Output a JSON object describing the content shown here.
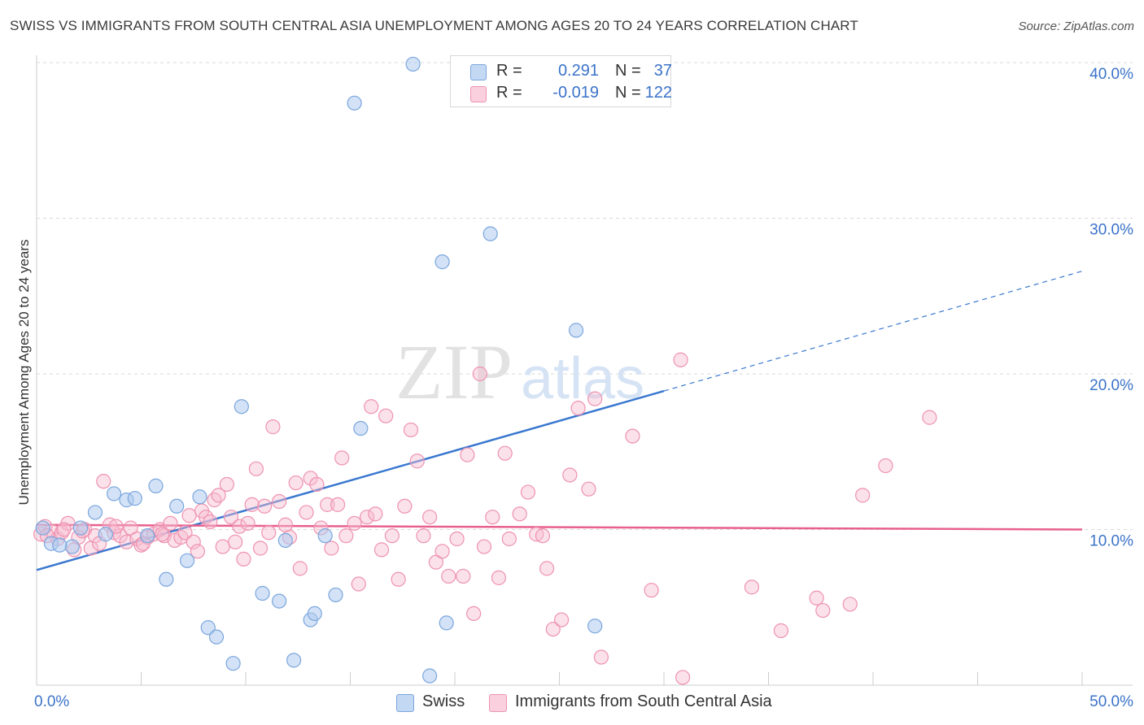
{
  "title": "SWISS VS IMMIGRANTS FROM SOUTH CENTRAL ASIA UNEMPLOYMENT AMONG AGES 20 TO 24 YEARS CORRELATION CHART",
  "source": "Source: ZipAtlas.com",
  "watermark": {
    "zip": "ZIP",
    "atlas": "atlas"
  },
  "legend": {
    "swiss": {
      "r_label": "R =",
      "r_value": "0.291",
      "n_label": "N =",
      "n_value": "37"
    },
    "immigrants": {
      "r_label": "R =",
      "r_value": "-0.019",
      "n_label": "N =",
      "n_value": "122"
    }
  },
  "bottom_legend": {
    "swiss": "Swiss",
    "immigrants": "Immigrants from South Central Asia"
  },
  "colors": {
    "swiss_fill": "#aecbef",
    "swiss_stroke": "#7aa6dd",
    "swiss_line": "#3a78d0",
    "imm_fill": "#f7bdd0",
    "imm_stroke": "#ee92b0",
    "imm_line": "#e8608c",
    "tick_label": "#3b73c9",
    "grid": "#d9d9d9"
  },
  "chart_data": {
    "type": "scatter",
    "title": "SWISS VS IMMIGRANTS FROM SOUTH CENTRAL ASIA UNEMPLOYMENT AMONG AGES 20 TO 24 YEARS CORRELATION CHART",
    "xlabel": "",
    "ylabel": "Unemployment Among Ages 20 to 24 years",
    "xlim": [
      0,
      50
    ],
    "ylim": [
      0,
      40
    ],
    "x_tick_labels": [
      "0.0%",
      "50.0%"
    ],
    "y_ticks": [
      10,
      20,
      30,
      40
    ],
    "y_tick_labels": [
      "10.0%",
      "20.0%",
      "30.0%",
      "40.0%"
    ],
    "grid": true,
    "legend_position": "top-center",
    "series": [
      {
        "name": "Swiss",
        "r": 0.291,
        "n": 37,
        "trend": {
          "x0": 0,
          "y0": 7.4,
          "x1": 30,
          "y1": 18.9,
          "dashed_to_x": 50,
          "dashed_to_y": 26.6
        },
        "points": [
          [
            0.3,
            10.1
          ],
          [
            0.7,
            9.1
          ],
          [
            1.7,
            8.9
          ],
          [
            2.8,
            11.1
          ],
          [
            3.7,
            12.3
          ],
          [
            4.3,
            11.9
          ],
          [
            4.7,
            12.0
          ],
          [
            5.3,
            9.6
          ],
          [
            5.7,
            12.8
          ],
          [
            6.2,
            6.8
          ],
          [
            6.7,
            11.5
          ],
          [
            7.2,
            8.0
          ],
          [
            7.8,
            12.1
          ],
          [
            8.2,
            3.7
          ],
          [
            8.6,
            3.1
          ],
          [
            9.4,
            1.4
          ],
          [
            9.8,
            17.9
          ],
          [
            10.8,
            5.9
          ],
          [
            11.6,
            5.4
          ],
          [
            11.9,
            9.3
          ],
          [
            12.3,
            1.6
          ],
          [
            13.1,
            4.2
          ],
          [
            13.3,
            4.6
          ],
          [
            13.8,
            9.6
          ],
          [
            14.3,
            5.8
          ],
          [
            15.2,
            37.4
          ],
          [
            15.5,
            16.5
          ],
          [
            18.0,
            39.9
          ],
          [
            18.8,
            0.6
          ],
          [
            19.4,
            27.2
          ],
          [
            19.6,
            4.0
          ],
          [
            21.7,
            29.0
          ],
          [
            25.8,
            22.8
          ],
          [
            26.7,
            3.8
          ],
          [
            1.1,
            9.0
          ],
          [
            2.1,
            10.1
          ],
          [
            3.3,
            9.7
          ]
        ]
      },
      {
        "name": "Immigrants from South Central Asia",
        "r": -0.019,
        "n": 122,
        "trend": {
          "x0": 0,
          "y0": 10.3,
          "x1": 50,
          "y1": 10.0
        },
        "points": [
          [
            0.2,
            9.7
          ],
          [
            0.4,
            10.2
          ],
          [
            0.7,
            9.9
          ],
          [
            1.0,
            9.4
          ],
          [
            1.2,
            9.8
          ],
          [
            1.5,
            10.4
          ],
          [
            1.8,
            8.7
          ],
          [
            2.0,
            9.5
          ],
          [
            2.3,
            10.0
          ],
          [
            2.6,
            8.8
          ],
          [
            2.8,
            9.6
          ],
          [
            3.0,
            9.1
          ],
          [
            3.2,
            13.1
          ],
          [
            3.5,
            10.3
          ],
          [
            3.7,
            9.8
          ],
          [
            4.0,
            9.6
          ],
          [
            4.3,
            9.2
          ],
          [
            4.5,
            10.1
          ],
          [
            4.8,
            9.4
          ],
          [
            5.0,
            9.0
          ],
          [
            5.3,
            9.5
          ],
          [
            5.6,
            9.7
          ],
          [
            5.9,
            10.0
          ],
          [
            6.1,
            9.6
          ],
          [
            6.4,
            10.4
          ],
          [
            6.6,
            9.3
          ],
          [
            6.9,
            9.5
          ],
          [
            7.1,
            9.8
          ],
          [
            7.3,
            10.9
          ],
          [
            7.5,
            9.2
          ],
          [
            7.7,
            8.6
          ],
          [
            7.9,
            11.2
          ],
          [
            8.1,
            10.8
          ],
          [
            8.3,
            10.5
          ],
          [
            8.5,
            11.9
          ],
          [
            8.7,
            12.2
          ],
          [
            8.9,
            8.9
          ],
          [
            9.1,
            12.9
          ],
          [
            9.3,
            10.8
          ],
          [
            9.5,
            9.2
          ],
          [
            9.7,
            10.2
          ],
          [
            9.9,
            8.1
          ],
          [
            10.1,
            10.4
          ],
          [
            10.3,
            11.6
          ],
          [
            10.5,
            13.9
          ],
          [
            10.7,
            8.8
          ],
          [
            10.9,
            11.5
          ],
          [
            11.1,
            9.8
          ],
          [
            11.3,
            16.6
          ],
          [
            11.6,
            11.8
          ],
          [
            11.9,
            10.3
          ],
          [
            12.1,
            9.5
          ],
          [
            12.4,
            13.0
          ],
          [
            12.6,
            7.5
          ],
          [
            12.9,
            11.1
          ],
          [
            13.1,
            13.3
          ],
          [
            13.4,
            12.9
          ],
          [
            13.6,
            10.1
          ],
          [
            13.9,
            11.6
          ],
          [
            14.1,
            8.8
          ],
          [
            14.4,
            11.6
          ],
          [
            14.6,
            14.6
          ],
          [
            14.8,
            9.6
          ],
          [
            15.2,
            10.4
          ],
          [
            15.4,
            6.5
          ],
          [
            15.8,
            10.8
          ],
          [
            16.0,
            17.9
          ],
          [
            16.2,
            11.0
          ],
          [
            16.5,
            8.7
          ],
          [
            16.7,
            17.3
          ],
          [
            17.0,
            9.6
          ],
          [
            17.3,
            6.8
          ],
          [
            17.6,
            11.5
          ],
          [
            17.9,
            16.4
          ],
          [
            18.2,
            14.4
          ],
          [
            18.5,
            9.6
          ],
          [
            18.8,
            10.8
          ],
          [
            19.1,
            7.9
          ],
          [
            19.4,
            8.6
          ],
          [
            19.7,
            7.0
          ],
          [
            20.1,
            9.4
          ],
          [
            20.4,
            7.0
          ],
          [
            20.6,
            14.8
          ],
          [
            20.9,
            4.6
          ],
          [
            21.2,
            20.0
          ],
          [
            21.4,
            8.9
          ],
          [
            21.8,
            10.8
          ],
          [
            22.1,
            6.9
          ],
          [
            22.4,
            14.9
          ],
          [
            22.6,
            9.4
          ],
          [
            23.1,
            11.0
          ],
          [
            23.5,
            12.4
          ],
          [
            23.9,
            9.7
          ],
          [
            24.2,
            9.6
          ],
          [
            24.4,
            7.5
          ],
          [
            24.7,
            3.6
          ],
          [
            25.1,
            4.2
          ],
          [
            25.5,
            13.5
          ],
          [
            25.9,
            17.8
          ],
          [
            26.4,
            12.6
          ],
          [
            26.7,
            18.4
          ],
          [
            27.0,
            1.8
          ],
          [
            28.5,
            16.0
          ],
          [
            29.4,
            6.1
          ],
          [
            30.8,
            20.9
          ],
          [
            30.9,
            0.5
          ],
          [
            34.2,
            6.3
          ],
          [
            35.6,
            3.5
          ],
          [
            37.3,
            5.6
          ],
          [
            37.6,
            4.8
          ],
          [
            38.9,
            5.2
          ],
          [
            39.5,
            12.2
          ],
          [
            40.6,
            14.1
          ],
          [
            42.7,
            17.2
          ],
          [
            1.3,
            10.0
          ],
          [
            2.2,
            9.9
          ],
          [
            3.8,
            10.2
          ],
          [
            5.1,
            9.1
          ],
          [
            6.0,
            9.7
          ],
          [
            0.5,
            9.6
          ]
        ]
      }
    ]
  }
}
